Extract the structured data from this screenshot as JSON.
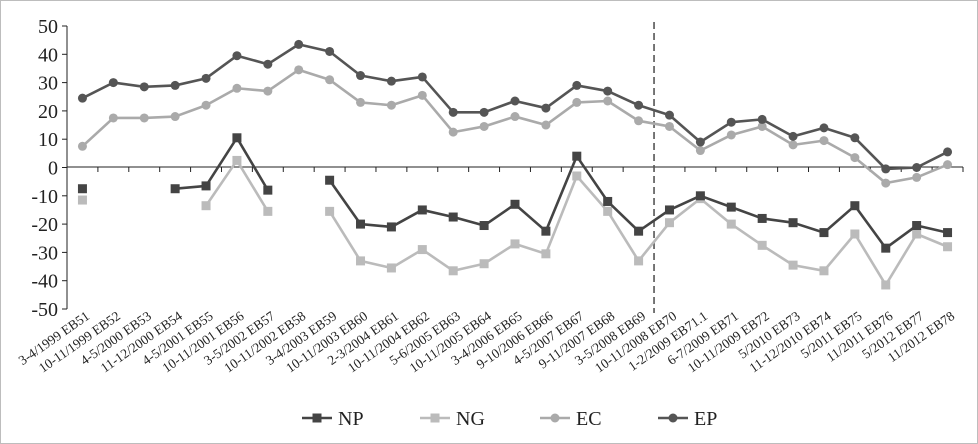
{
  "chart_data": {
    "type": "line",
    "categories": [
      "3-4/1999 EB51",
      "10-11/1999 EB52",
      "4-5/2000 EB53",
      "11-12/2000 EB54",
      "4-5/2001 EB55",
      "10-11/2001 EB56",
      "3-5/2002 EB57",
      "10-11/2002 EB58",
      "3-4/2003 EB59",
      "10-11/2003 EB60",
      "2-3/2004 EB61",
      "10-11/2004 EB62",
      "5-6/2005 EB63",
      "10-11/2005 EB64",
      "3-4/2006 EB65",
      "9-10/2006 EB66",
      "4-5/2007 EB67",
      "9-11/2007 EB68",
      "3-5/2008 EB69",
      "10-11/2008 EB70",
      "1-2/2009 EB71.1",
      "6-7/2009 EB71",
      "10-11/2009 EB72",
      "5/2010 EB73",
      "11-12/2010 EB74",
      "5/2011 EB75",
      "11/2011 EB76",
      "5/2012 EB77",
      "11/2012 EB78"
    ],
    "series": [
      {
        "name": "NP",
        "color": "#444444",
        "marker": "square",
        "values": [
          -7.5,
          null,
          null,
          -7.5,
          -6.5,
          10.5,
          -8,
          null,
          -4.5,
          -20,
          -21,
          -15,
          -17.5,
          -20.5,
          -13,
          -22.5,
          4,
          -12,
          -22.5,
          -15,
          -10,
          -14,
          -18,
          -19.5,
          -23,
          -13.5,
          -28.5,
          -20.5,
          -23
        ]
      },
      {
        "name": "NG",
        "color": "#bbbbbb",
        "marker": "square",
        "values": [
          -11.5,
          null,
          null,
          null,
          -13.5,
          2.5,
          -15.5,
          null,
          -15.5,
          -33,
          -35.5,
          -29,
          -36.5,
          -34,
          -27,
          -30.5,
          -3,
          -15.5,
          -33,
          -19.5,
          -11,
          -20,
          -27.5,
          -34.5,
          -36.5,
          -23.5,
          -41.5,
          -23.5,
          -28
        ]
      },
      {
        "name": "EC",
        "color": "#aaaaaa",
        "marker": "circle",
        "values": [
          7.5,
          17.5,
          17.5,
          18,
          22,
          28,
          27,
          34.5,
          31,
          23,
          22,
          25.5,
          12.5,
          14.5,
          18,
          15,
          23,
          23.5,
          16.5,
          14.5,
          6,
          11.5,
          14.5,
          8,
          9.5,
          3.5,
          -5.5,
          -3.5,
          1
        ]
      },
      {
        "name": "EP",
        "color": "#555555",
        "marker": "circle",
        "values": [
          24.5,
          30,
          28.5,
          29,
          31.5,
          39.5,
          36.5,
          43.5,
          41,
          32.5,
          30.5,
          32,
          19.5,
          19.5,
          23.5,
          21,
          29,
          27,
          22,
          18.5,
          9,
          16,
          17,
          11,
          14,
          10.5,
          -0.5,
          0,
          5.5
        ]
      }
    ],
    "ylim": [
      -50,
      50
    ],
    "yticks": [
      "50",
      "40",
      "30",
      "20",
      "10",
      "0",
      "-10",
      "-20",
      "-30",
      "-40",
      "-50"
    ],
    "vline_category": "10-11/2008 EB70",
    "legend_position": "bottom",
    "grid": false
  }
}
